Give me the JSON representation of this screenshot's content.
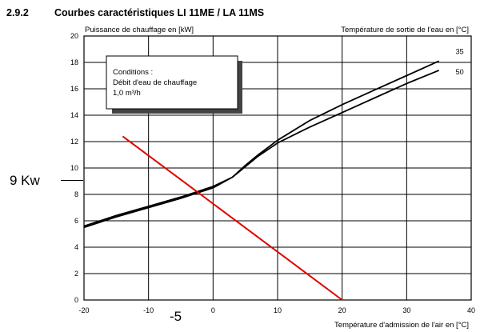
{
  "section": {
    "number": "2.9.2",
    "title": "Courbes caractéristiques LI 11ME / LA 11MS"
  },
  "conditions": {
    "line1": "Conditions :",
    "line2": "Débit d'eau de chauffage",
    "line3": "1,0 m³/h"
  },
  "annotations": {
    "power_marker": "9 Kw",
    "temp_marker": "-5"
  },
  "colors": {
    "curves": "#000000",
    "red_line": "#e00000",
    "grid": "#000000",
    "box_shadow": "#444444"
  },
  "chart_data": {
    "type": "line",
    "ylabel": "Puissance de chauffage en [kW]",
    "xlabel": "Température d'admission de l'air en [°C]",
    "legend_title": "Température de sortie de l'eau en [°C]",
    "xlim": [
      -20,
      40
    ],
    "ylim": [
      0,
      20
    ],
    "x_ticks": [
      -20,
      -10,
      0,
      10,
      20,
      30,
      40
    ],
    "y_ticks": [
      0,
      2,
      4,
      6,
      8,
      10,
      12,
      14,
      16,
      18,
      20
    ],
    "grid": true,
    "series": [
      {
        "name": "35",
        "x": [
          -20,
          -15,
          -10,
          -5,
          0,
          3,
          5,
          7,
          10,
          15,
          20,
          25,
          30,
          35
        ],
        "y": [
          5.6,
          6.4,
          7.1,
          7.8,
          8.6,
          9.3,
          10.2,
          11.0,
          12.1,
          13.6,
          14.8,
          15.9,
          17.0,
          18.1
        ]
      },
      {
        "name": "50",
        "x": [
          -20,
          -15,
          -10,
          -5,
          0,
          3,
          5,
          7,
          10,
          15,
          20,
          25,
          30,
          35
        ],
        "y": [
          5.5,
          6.3,
          7.0,
          7.7,
          8.5,
          9.3,
          10.1,
          10.9,
          11.9,
          13.1,
          14.2,
          15.3,
          16.4,
          17.4
        ]
      },
      {
        "name": "",
        "x": [
          -14,
          20
        ],
        "y": [
          12.4,
          0
        ]
      }
    ]
  }
}
